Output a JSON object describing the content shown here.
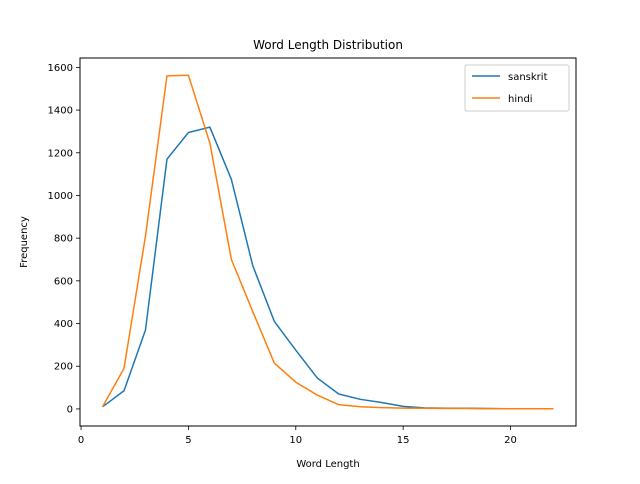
{
  "chart_data": {
    "type": "line",
    "title": "Word Length Distribution",
    "xlabel": "Word Length",
    "ylabel": "Frequency",
    "xlim": [
      -0.05,
      23.05
    ],
    "ylim": [
      -80,
      1644
    ],
    "xticks": [
      0,
      5,
      10,
      15,
      20
    ],
    "xtick_labels": [
      "0",
      "5",
      "10",
      "15",
      "20"
    ],
    "yticks": [
      0,
      200,
      400,
      600,
      800,
      1000,
      1200,
      1400,
      1600
    ],
    "ytick_labels": [
      "0",
      "200",
      "400",
      "600",
      "800",
      "1000",
      "1200",
      "1400",
      "1600"
    ],
    "grid": false,
    "legend_position": "top-right",
    "x": [
      1,
      2,
      3,
      4,
      5,
      6,
      7,
      8,
      9,
      10,
      11,
      12,
      13,
      14,
      15,
      16,
      17,
      18,
      19,
      20,
      21,
      22
    ],
    "series": [
      {
        "name": "sanskrit",
        "color": "#1f77b4",
        "values": [
          10,
          85,
          370,
          1170,
          1295,
          1320,
          1075,
          670,
          410,
          275,
          145,
          70,
          45,
          30,
          12,
          5,
          3,
          3,
          2,
          1,
          1,
          1
        ]
      },
      {
        "name": "hindi",
        "color": "#ff7f0e",
        "values": [
          10,
          190,
          810,
          1560,
          1563,
          1245,
          700,
          455,
          215,
          125,
          65,
          20,
          10,
          6,
          4,
          3,
          2,
          2,
          1,
          1,
          1,
          1
        ]
      }
    ]
  }
}
